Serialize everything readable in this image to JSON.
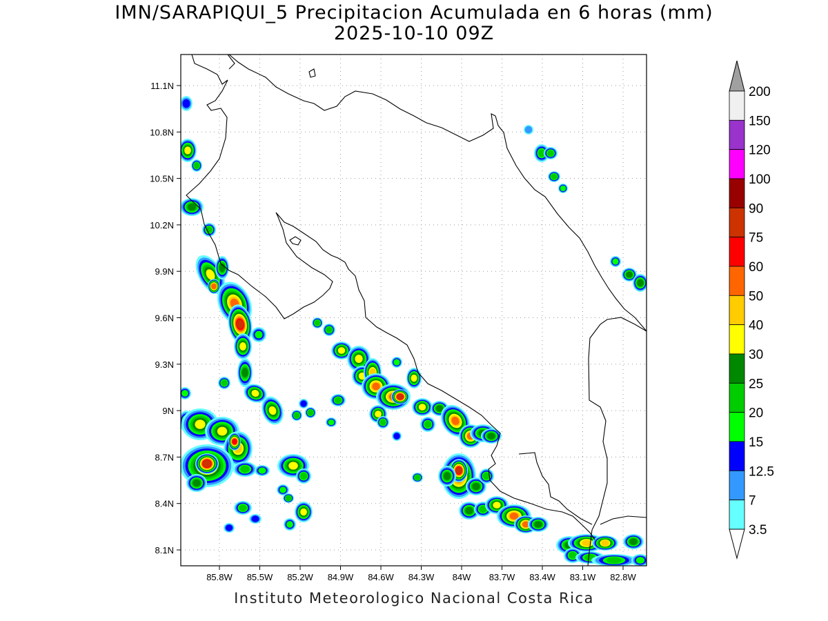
{
  "title_line1": "IMN/SARAPIQUI_5 Precipitacion Acumulada en 6 horas (mm)",
  "title_line2": "2025-10-10 09Z",
  "footer": "Instituto Meteorologico Nacional Costa Rica",
  "map": {
    "lon_range": [
      -86.07,
      -82.57
    ],
    "lat_range": [
      8.0,
      11.3
    ],
    "lon_ticks": [
      "85.8W",
      "85.5W",
      "85.2W",
      "84.9W",
      "84.6W",
      "84.3W",
      "84W",
      "83.7W",
      "83.4W",
      "83.1W",
      "82.8W"
    ],
    "lat_ticks": [
      "8.1N",
      "8.4N",
      "8.7N",
      "9N",
      "9.3N",
      "9.6N",
      "9.9N",
      "10.2N",
      "10.5N",
      "10.8N",
      "11.1N"
    ],
    "gridlines": "dotted",
    "coastline_color": "#000000"
  },
  "colorbar": {
    "labels": [
      "3.5",
      "7",
      "12.5",
      "15",
      "20",
      "25",
      "30",
      "40",
      "50",
      "60",
      "75",
      "90",
      "100",
      "120",
      "150",
      "200"
    ],
    "colors": [
      "#ffffff",
      "#66ffff",
      "#3399ff",
      "#0000ff",
      "#00ff00",
      "#00cc00",
      "#008800",
      "#ffff00",
      "#ffcc00",
      "#ff6600",
      "#ff0000",
      "#cc3300",
      "#990000",
      "#ff00ff",
      "#9933cc",
      "#f0f0f0",
      "#a0a0a0"
    ],
    "units": "mm"
  },
  "precip_colors": {
    "l1": "#66ffff",
    "l2": "#3399ff",
    "l3": "#0000ff",
    "l4": "#00ff00",
    "l5": "#00cc00",
    "l6": "#008800",
    "l7": "#ffff00",
    "l8": "#ffcc00",
    "l9": "#ff6600",
    "l10": "#ff0000",
    "l11": "#cc3300"
  }
}
